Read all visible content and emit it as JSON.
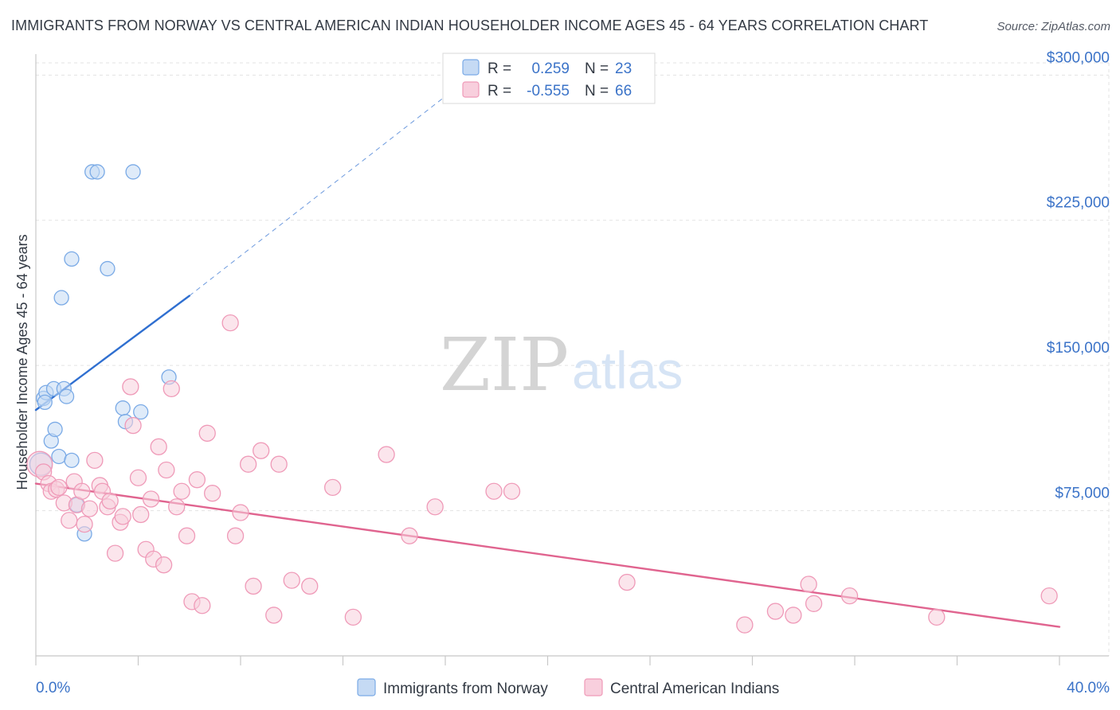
{
  "header": {
    "title": "IMMIGRANTS FROM NORWAY VS CENTRAL AMERICAN INDIAN HOUSEHOLDER INCOME AGES 45 - 64 YEARS CORRELATION CHART",
    "source": "Source: ZipAtlas.com"
  },
  "watermark": {
    "zip": "ZIP",
    "atlas": "atlas"
  },
  "chart_data": {
    "type": "scatter",
    "title": "IMMIGRANTS FROM NORWAY VS CENTRAL AMERICAN INDIAN HOUSEHOLDER INCOME AGES 45 - 64 YEARS CORRELATION CHART",
    "xlabel": "",
    "ylabel": "Householder Income Ages 45 - 64 years",
    "xlim": [
      0,
      40
    ],
    "ylim": [
      0,
      310000
    ],
    "x_tick_labels": [
      "0.0%",
      "40.0%"
    ],
    "y_ticks": [
      75000,
      150000,
      225000,
      300000
    ],
    "y_tick_labels": [
      "$75,000",
      "$150,000",
      "$225,000",
      "$300,000"
    ],
    "grid": true,
    "legend_position": "top-center",
    "series": [
      {
        "name": "Immigrants from Norway",
        "color": "#7aaae6",
        "fill": "#c5daf4",
        "line_color": "#2f6fd0",
        "r": "0.259",
        "n": "23",
        "trend": {
          "x_start": 0.0,
          "y_start": 127000,
          "x_end": 6.0,
          "y_end": 186000,
          "x_dash_end": 16.0,
          "y_dash_end": 289000
        },
        "points": [
          [
            0.2,
            99000,
            14
          ],
          [
            0.3,
            133000,
            9
          ],
          [
            0.4,
            136000,
            9
          ],
          [
            0.6,
            111000,
            9
          ],
          [
            0.75,
            117000,
            9
          ],
          [
            0.7,
            138000,
            9
          ],
          [
            0.9,
            103000,
            9
          ],
          [
            1.1,
            138000,
            9
          ],
          [
            1.4,
            101000,
            9
          ],
          [
            1.6,
            78000,
            9
          ],
          [
            1.2,
            134000,
            9
          ],
          [
            1.4,
            205000,
            9
          ],
          [
            1.0,
            185000,
            9
          ],
          [
            1.9,
            63000,
            9
          ],
          [
            2.2,
            250000,
            9
          ],
          [
            2.4,
            250000,
            9
          ],
          [
            3.8,
            250000,
            9
          ],
          [
            2.8,
            200000,
            9
          ],
          [
            3.4,
            128000,
            9
          ],
          [
            3.5,
            121000,
            9
          ],
          [
            4.1,
            126000,
            9
          ],
          [
            5.2,
            144000,
            9
          ],
          [
            0.35,
            131000,
            9
          ]
        ]
      },
      {
        "name": "Central American Indians",
        "color": "#ef9ab8",
        "fill": "#f8cfdd",
        "line_color": "#e0648f",
        "r": "-0.555",
        "n": "66",
        "trend": {
          "x_start": 0.0,
          "y_start": 89000,
          "x_end": 40.0,
          "y_end": 15000
        },
        "points": [
          [
            0.15,
            99000,
            16
          ],
          [
            0.3,
            95000,
            10
          ],
          [
            0.5,
            89000,
            10
          ],
          [
            0.6,
            85000,
            10
          ],
          [
            0.8,
            86000,
            10
          ],
          [
            0.9,
            87000,
            10
          ],
          [
            1.1,
            79000,
            10
          ],
          [
            1.3,
            70000,
            10
          ],
          [
            1.5,
            90000,
            10
          ],
          [
            1.6,
            78000,
            10
          ],
          [
            1.8,
            85000,
            10
          ],
          [
            1.9,
            68000,
            10
          ],
          [
            2.1,
            76000,
            10
          ],
          [
            2.3,
            101000,
            10
          ],
          [
            2.5,
            88000,
            10
          ],
          [
            2.6,
            85000,
            10
          ],
          [
            2.8,
            77000,
            10
          ],
          [
            2.9,
            80000,
            10
          ],
          [
            3.1,
            53000,
            10
          ],
          [
            3.3,
            69000,
            10
          ],
          [
            3.4,
            72000,
            10
          ],
          [
            3.7,
            139000,
            10
          ],
          [
            3.8,
            119000,
            10
          ],
          [
            4.0,
            92000,
            10
          ],
          [
            4.1,
            73000,
            10
          ],
          [
            4.3,
            55000,
            10
          ],
          [
            4.5,
            81000,
            10
          ],
          [
            4.6,
            50000,
            10
          ],
          [
            4.8,
            108000,
            10
          ],
          [
            5.0,
            47000,
            10
          ],
          [
            5.1,
            96000,
            10
          ],
          [
            5.3,
            138000,
            10
          ],
          [
            5.5,
            77000,
            10
          ],
          [
            5.7,
            85000,
            10
          ],
          [
            5.9,
            62000,
            10
          ],
          [
            6.1,
            28000,
            10
          ],
          [
            6.3,
            91000,
            10
          ],
          [
            6.5,
            26000,
            10
          ],
          [
            6.7,
            115000,
            10
          ],
          [
            6.9,
            84000,
            10
          ],
          [
            7.6,
            172000,
            10
          ],
          [
            7.8,
            62000,
            10
          ],
          [
            8.0,
            74000,
            10
          ],
          [
            8.3,
            99000,
            10
          ],
          [
            8.5,
            36000,
            10
          ],
          [
            8.8,
            106000,
            10
          ],
          [
            9.3,
            21000,
            10
          ],
          [
            9.5,
            99000,
            10
          ],
          [
            10.0,
            39000,
            10
          ],
          [
            10.7,
            36000,
            10
          ],
          [
            11.6,
            87000,
            10
          ],
          [
            12.4,
            20000,
            10
          ],
          [
            13.7,
            104000,
            10
          ],
          [
            14.6,
            62000,
            10
          ],
          [
            15.6,
            77000,
            10
          ],
          [
            17.9,
            85000,
            10
          ],
          [
            18.6,
            85000,
            10
          ],
          [
            23.1,
            38000,
            10
          ],
          [
            27.7,
            16000,
            10
          ],
          [
            28.9,
            23000,
            10
          ],
          [
            29.6,
            21000,
            10
          ],
          [
            30.2,
            37000,
            10
          ],
          [
            30.4,
            27000,
            10
          ],
          [
            31.8,
            31000,
            10
          ],
          [
            35.2,
            20000,
            10
          ],
          [
            39.6,
            31000,
            10
          ]
        ]
      }
    ]
  },
  "legend": {
    "r_label": "R =",
    "n_label": "N ="
  }
}
